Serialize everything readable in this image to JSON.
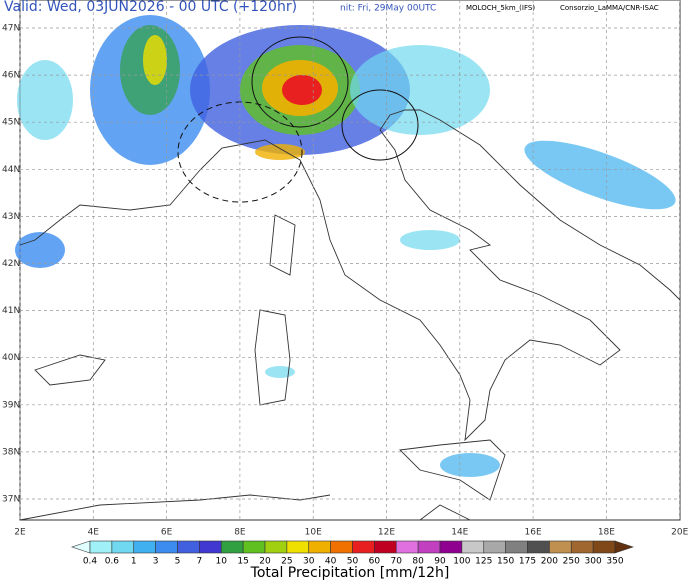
{
  "header": {
    "valid": "Valid: Wed, 03JUN2026 - 00 UTC (+120hr)",
    "init": "nit: Fri, 29May 00UTC",
    "model": "MOLOCH_5km_(IFS)",
    "credit": "Consorzio_LaMMA/CNR-ISAC"
  },
  "lat_labels": [
    "47N",
    "46N",
    "45N",
    "44N",
    "43N",
    "42N",
    "41N",
    "40N",
    "39N",
    "38N",
    "37N"
  ],
  "lon_labels": [
    "2E",
    "4E",
    "6E",
    "8E",
    "10E",
    "12E",
    "14E",
    "16E",
    "18E",
    "20E"
  ],
  "colorbar": {
    "title": "Total Precipitation [mm/12h]",
    "labels": [
      0.4,
      0.6,
      1,
      3,
      5,
      7,
      10,
      15,
      20,
      25,
      30,
      40,
      50,
      60,
      70,
      80,
      90,
      100,
      125,
      150,
      175,
      200,
      250,
      300,
      350
    ],
    "colors": [
      "#e0ffff",
      "#a0f0f8",
      "#70d8f0",
      "#40b0f0",
      "#3c8cf0",
      "#4060e0",
      "#4038d0",
      "#30a040",
      "#60c020",
      "#a0d010",
      "#f0e000",
      "#f0b000",
      "#f07000",
      "#e82020",
      "#c00020",
      "#e070e0",
      "#c040c0",
      "#900090",
      "#c8c8c8",
      "#a8a8a8",
      "#808080",
      "#505050",
      "#c09050",
      "#a06830",
      "#804818",
      "#603010"
    ]
  }
}
